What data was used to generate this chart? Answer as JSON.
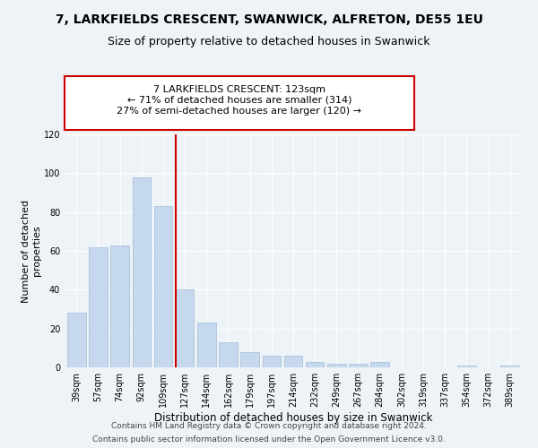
{
  "title": "7, LARKFIELDS CRESCENT, SWANWICK, ALFRETON, DE55 1EU",
  "subtitle": "Size of property relative to detached houses in Swanwick",
  "xlabel": "Distribution of detached houses by size in Swanwick",
  "ylabel": "Number of detached\nproperties",
  "bar_labels": [
    "39sqm",
    "57sqm",
    "74sqm",
    "92sqm",
    "109sqm",
    "127sqm",
    "144sqm",
    "162sqm",
    "179sqm",
    "197sqm",
    "214sqm",
    "232sqm",
    "249sqm",
    "267sqm",
    "284sqm",
    "302sqm",
    "319sqm",
    "337sqm",
    "354sqm",
    "372sqm",
    "389sqm"
  ],
  "bar_values": [
    28,
    62,
    63,
    98,
    83,
    40,
    23,
    13,
    8,
    6,
    6,
    3,
    2,
    2,
    3,
    0,
    0,
    0,
    1,
    0,
    1
  ],
  "bar_color": "#c5d8ed",
  "bar_edgecolor": "#a0bcd8",
  "property_line_index": 5,
  "property_line_color": "#cc0000",
  "annotation_text": "7 LARKFIELDS CRESCENT: 123sqm\n← 71% of detached houses are smaller (314)\n27% of semi-detached houses are larger (120) →",
  "annotation_box_color": "#cc0000",
  "annotation_text_color": "#000000",
  "ylim": [
    0,
    120
  ],
  "yticks": [
    0,
    20,
    40,
    60,
    80,
    100,
    120
  ],
  "background_color": "#eef3f8",
  "footer_line1": "Contains HM Land Registry data © Crown copyright and database right 2024.",
  "footer_line2": "Contains public sector information licensed under the Open Government Licence v3.0.",
  "title_fontsize": 10,
  "subtitle_fontsize": 9,
  "xlabel_fontsize": 8.5,
  "ylabel_fontsize": 8,
  "tick_fontsize": 7,
  "annotation_fontsize": 8,
  "footer_fontsize": 6.5
}
